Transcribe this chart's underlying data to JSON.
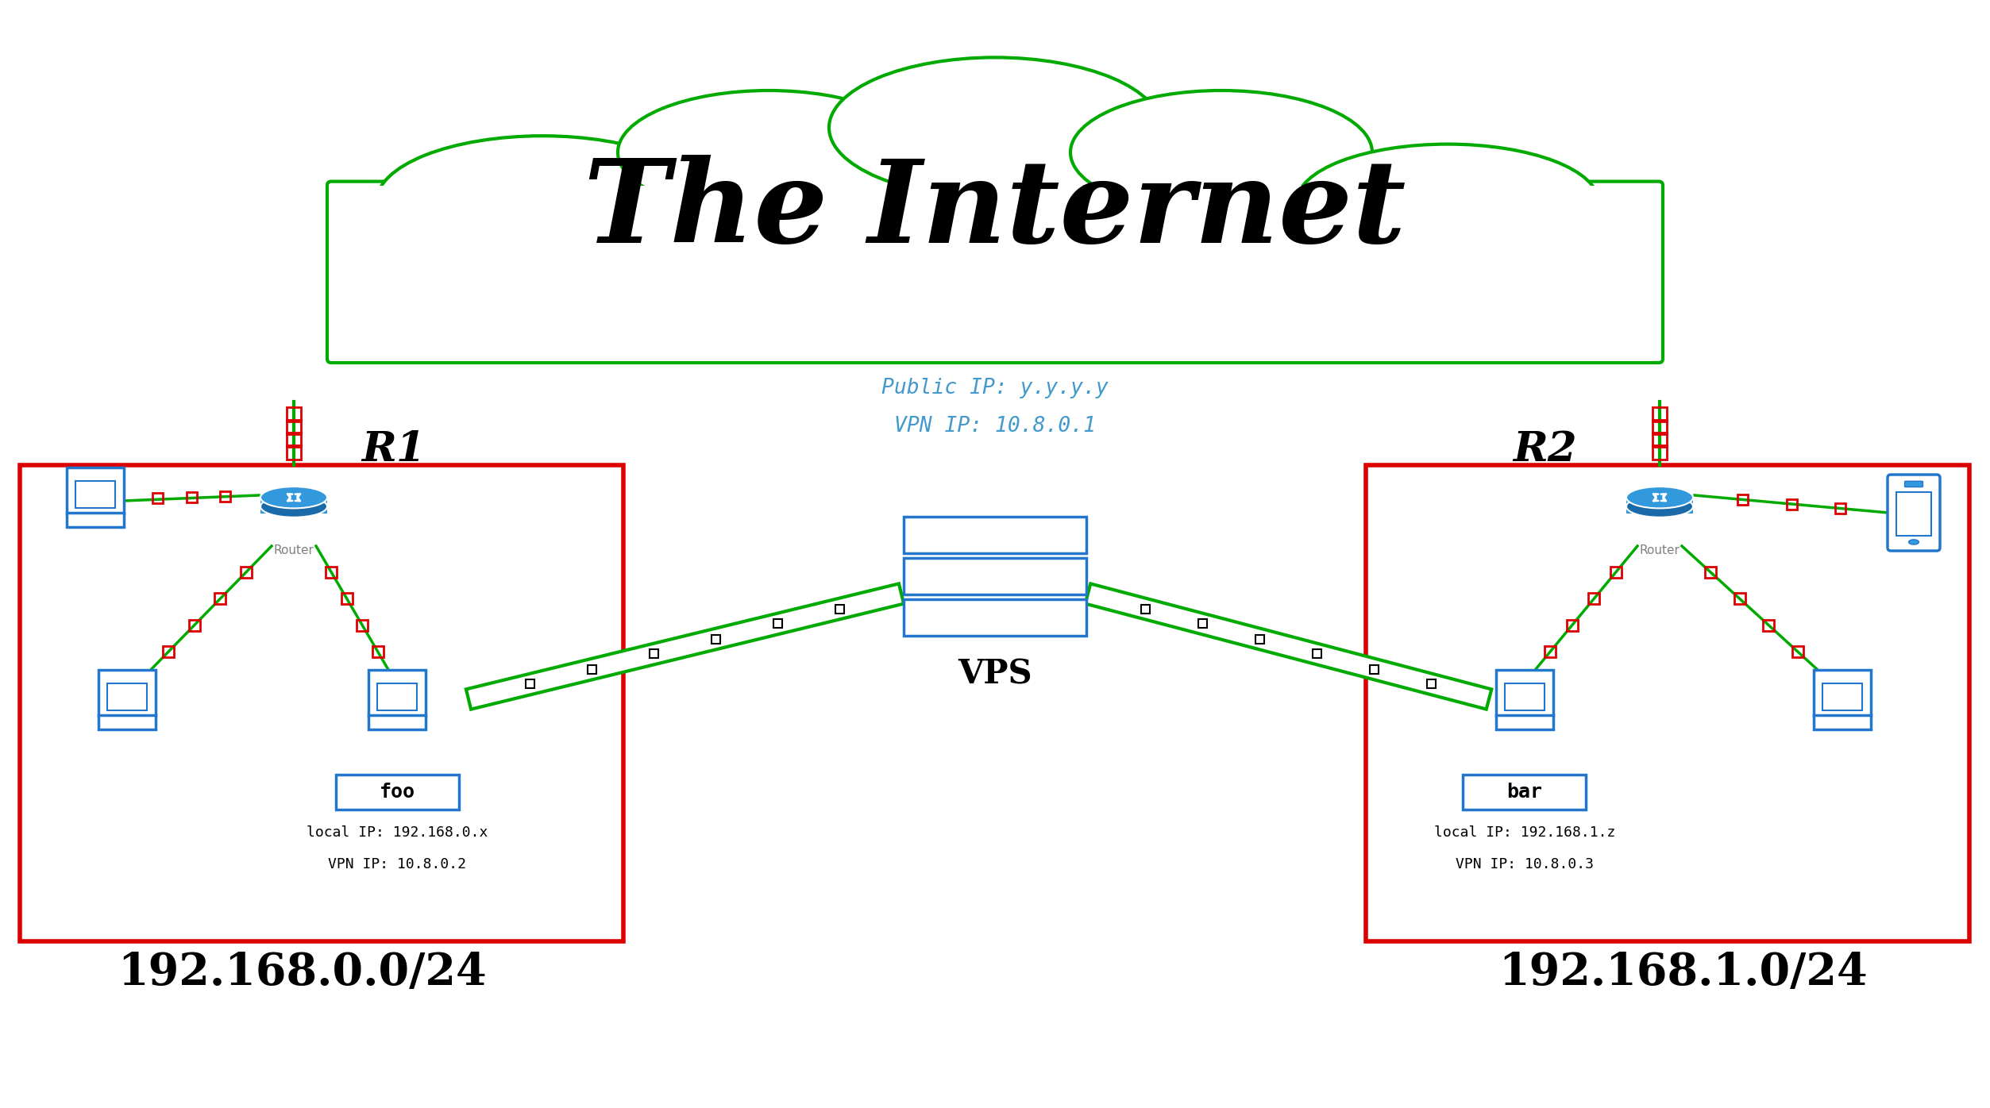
{
  "title": "The Internet",
  "cloud_color": "#00aa00",
  "bg_color": "#ffffff",
  "red_box_color": "#dd0000",
  "blue_device_color": "#2277cc",
  "router_fill": "#3399dd",
  "line_color": "#00aa00",
  "dashed_color": "#dd0000",
  "text_color": "#000000",
  "vps_text_color": "#4499cc",
  "site_left_label": "192.168.0.0/24",
  "site_right_label": "192.168.1.0/24",
  "r1_label": "R1",
  "r2_label": "R2",
  "router_label": "Router",
  "vps_label": "VPS",
  "foo_label": "foo",
  "bar_label": "bar",
  "foo_ip1": "local IP: 192.168.0.x",
  "foo_ip2": "VPN IP: 10.8.0.2",
  "bar_ip1": "local IP: 192.168.1.z",
  "bar_ip2": "VPN IP: 10.8.0.3",
  "vps_pub_ip": "Public IP: y.y.y.y",
  "vps_vpn_ip": "VPN IP: 10.8.0.1"
}
